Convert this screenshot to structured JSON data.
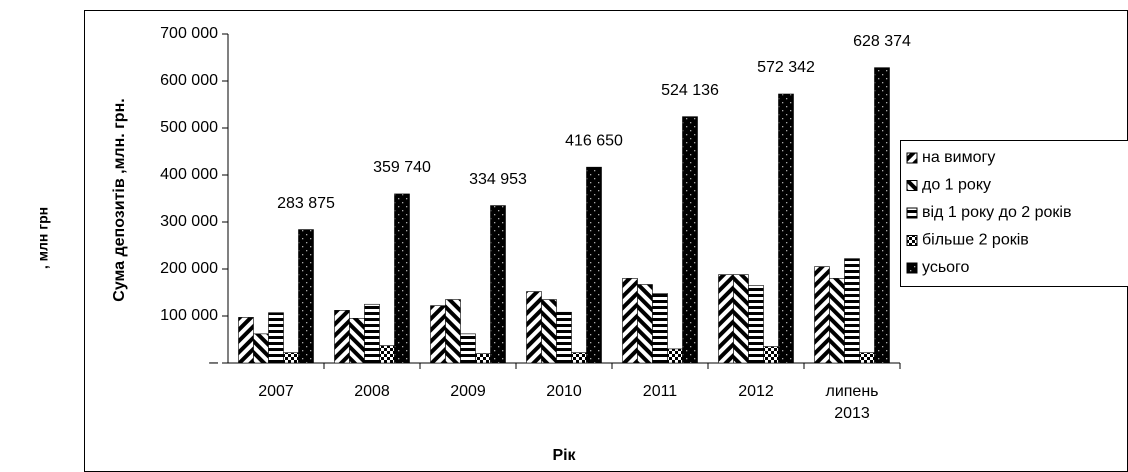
{
  "chart_data": {
    "type": "bar",
    "side_label": ", млн грн",
    "y_label": "Сума депозитів ,млн. грн.",
    "x_label": "Рік",
    "categories": [
      "2007",
      "2008",
      "2009",
      "2010",
      "2011",
      "2012",
      "липень 2013"
    ],
    "series": [
      {
        "name": "на вимогу",
        "color": "#000000",
        "pattern": "diagonal-right",
        "values": [
          97000,
          112000,
          122000,
          152000,
          180000,
          188000,
          205000
        ]
      },
      {
        "name": "до 1 року",
        "color": "#000000",
        "pattern": "diagonal-left",
        "values": [
          62000,
          95000,
          135000,
          135000,
          167000,
          188000,
          180000
        ]
      },
      {
        "name": "від 1 року до 2 років",
        "color": "#000000",
        "pattern": "horizontal",
        "values": [
          107000,
          125000,
          62000,
          108000,
          148000,
          165000,
          222000
        ]
      },
      {
        "name": "більше 2 років",
        "color": "#000000",
        "pattern": "checker",
        "values": [
          22000,
          37000,
          20000,
          22000,
          30000,
          35000,
          22000
        ]
      },
      {
        "name": "усього",
        "color": "#000000",
        "pattern": "dotted-dark",
        "values": [
          283875,
          359740,
          334953,
          416650,
          524136,
          572342,
          628374
        ],
        "value_labels": [
          "283 875",
          "359 740",
          "334 953",
          "416 650",
          "524 136",
          "572 342",
          "628 374"
        ]
      }
    ],
    "ylim": [
      0,
      700000
    ],
    "yticks": [
      {
        "value": 0,
        "label": "–"
      },
      {
        "value": 100000,
        "label": "100 000"
      },
      {
        "value": 200000,
        "label": "200 000"
      },
      {
        "value": 300000,
        "label": "300 000"
      },
      {
        "value": 400000,
        "label": "400 000"
      },
      {
        "value": 500000,
        "label": "500 000"
      },
      {
        "value": 600000,
        "label": "600 000"
      },
      {
        "value": 700000,
        "label": "700 000"
      }
    ],
    "grid": false,
    "legend": "right"
  }
}
